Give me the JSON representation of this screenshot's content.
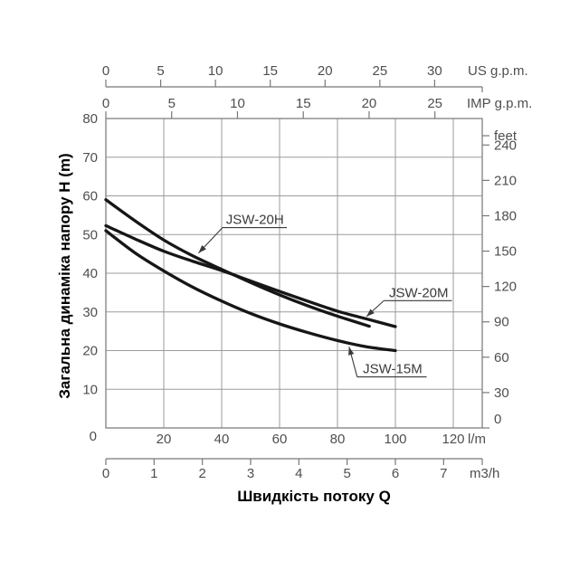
{
  "page": {
    "background": "#ffffff"
  },
  "chart_data": {
    "type": "line",
    "x_title": "Швидкість потоку Q",
    "y_title": "Загальна динаміка напору H (m)",
    "x_range_lm": [
      0,
      130
    ],
    "y_range_m": [
      0,
      80
    ],
    "grid_x_lm": [
      20,
      40,
      60,
      80,
      100,
      120
    ],
    "grid_y_m": [
      10,
      20,
      30,
      40,
      50,
      60,
      70
    ],
    "origin_label": "0",
    "axes": {
      "us_gpm": {
        "label": "US g.p.m.",
        "ticks": [
          0,
          5,
          10,
          15,
          20,
          25,
          30
        ],
        "lm_per_unit": 3.7854
      },
      "imp_gpm": {
        "label": "IMP g.p.m.",
        "ticks": [
          0,
          5,
          10,
          15,
          20,
          25
        ],
        "lm_per_unit": 4.5461
      },
      "feet": {
        "label": "feet",
        "ticks": [
          0,
          30,
          60,
          90,
          120,
          150,
          180,
          210,
          240
        ],
        "m_per_unit": 0.3048
      },
      "lm": {
        "label": "l/m",
        "ticks": [
          20,
          40,
          60,
          80,
          100,
          120
        ]
      },
      "m3h": {
        "label": "m3/h",
        "ticks": [
          0,
          1,
          2,
          3,
          4,
          5,
          6,
          7
        ],
        "lm_per_unit": 16.6667
      },
      "h_m": {
        "ticks": [
          10,
          20,
          30,
          40,
          50,
          60,
          70,
          80
        ]
      }
    },
    "series": [
      {
        "name": "JSW-20H",
        "points": [
          [
            0,
            59
          ],
          [
            10,
            53.6
          ],
          [
            20,
            48.6
          ],
          [
            30,
            44.5
          ],
          [
            40,
            41
          ],
          [
            50,
            37.6
          ],
          [
            60,
            34.4
          ],
          [
            70,
            31.5
          ],
          [
            80,
            28.9
          ],
          [
            91,
            26.3
          ]
        ]
      },
      {
        "name": "JSW-20M",
        "points": [
          [
            0,
            52.3
          ],
          [
            10,
            48.9
          ],
          [
            20,
            45.7
          ],
          [
            30,
            43.1
          ],
          [
            40,
            40.7
          ],
          [
            50,
            38
          ],
          [
            60,
            35.3
          ],
          [
            70,
            32.7
          ],
          [
            80,
            30.2
          ],
          [
            90,
            28.2
          ],
          [
            100,
            26.2
          ]
        ]
      },
      {
        "name": "JSW-15M",
        "points": [
          [
            0,
            51
          ],
          [
            10,
            45.3
          ],
          [
            20,
            40.6
          ],
          [
            30,
            36.4
          ],
          [
            40,
            32.8
          ],
          [
            50,
            29.6
          ],
          [
            60,
            26.9
          ],
          [
            70,
            24.6
          ],
          [
            80,
            22.6
          ],
          [
            90,
            21
          ],
          [
            100,
            20
          ]
        ]
      }
    ],
    "annotations": [
      {
        "series_index": 0,
        "text_x_lm": 41.5,
        "underline_y_m": 51.8,
        "underline_x1_lm": 40.3,
        "underline_x2_lm": 62.5,
        "arrow_tip_lm": 32,
        "arrow_tip_m": 45.2
      },
      {
        "series_index": 1,
        "text_x_lm": 97.8,
        "underline_y_m": 32.9,
        "underline_x1_lm": 96.0,
        "underline_x2_lm": 119.5,
        "arrow_tip_lm": 90,
        "arrow_tip_m": 28.8
      },
      {
        "series_index": 2,
        "text_x_lm": 88.8,
        "underline_y_m": 13.2,
        "underline_x1_lm": 86.8,
        "underline_x2_lm": 110.8,
        "arrow_tip_lm": 84,
        "arrow_tip_m": 21
      }
    ],
    "colors": {
      "curve": "#161616",
      "grid": "#9b9b9b",
      "border": "#808080",
      "axis": "#787878",
      "tick_label": "#4e4e4e",
      "annotation": "#3a3a3a",
      "title": "#000000"
    }
  }
}
